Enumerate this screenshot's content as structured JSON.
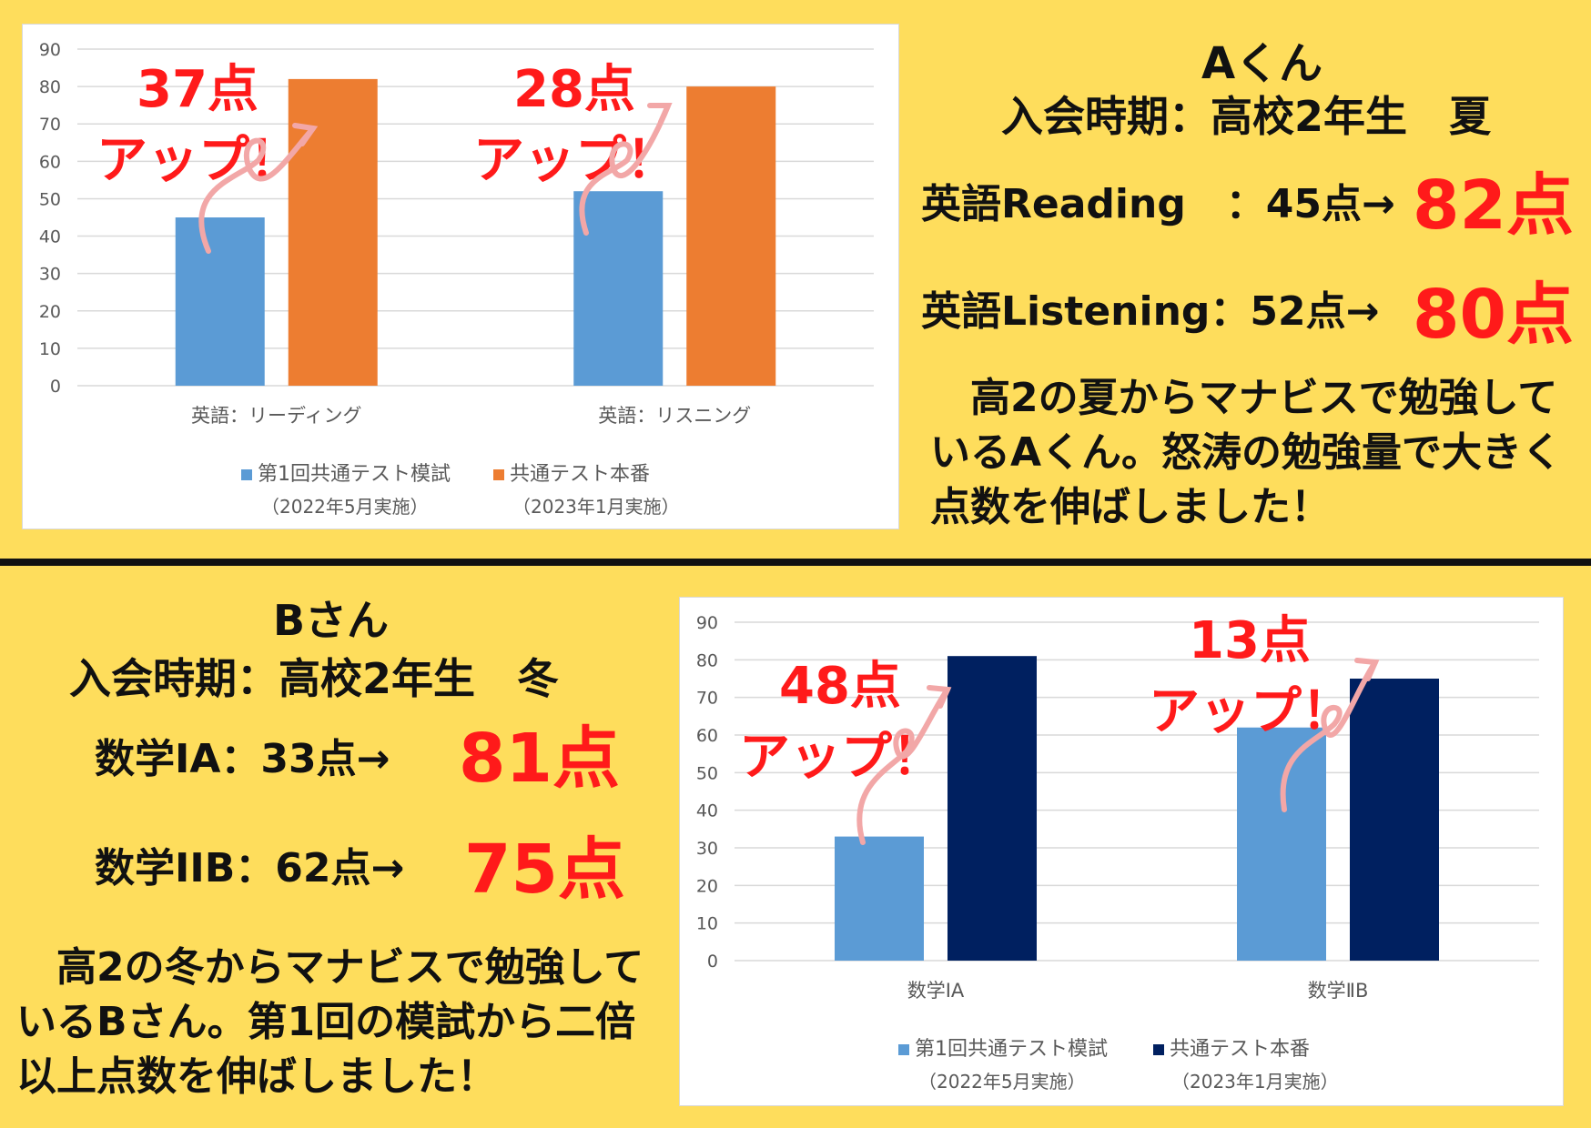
{
  "top": {
    "student": "Aくん",
    "period": "入会時期：高校2年生　夏",
    "score1": {
      "label": "英語Reading　：45点→",
      "result": "82点"
    },
    "score2": {
      "label": "英語Listening：52点→",
      "result": "80点"
    },
    "desc": [
      "　高2の夏からマナビスで勉強して",
      "いるAくん。怒涛の勉強量で大きく",
      "点数を伸ばしました！"
    ]
  },
  "bottom": {
    "student": "Bさん",
    "period": "入会時期：高校2年生　冬",
    "score1": {
      "label": "数学IA：33点→",
      "result": "81点"
    },
    "score2": {
      "label": "数学IIB：62点→",
      "result": "75点"
    },
    "desc": [
      "　高2の冬からマナビスで勉強して",
      "いるBさん。第1回の模試から二倍",
      "以上点数を伸ばしました！"
    ]
  },
  "annotations": {
    "top_left": [
      "37点",
      "アップ！"
    ],
    "top_right": [
      "28点",
      "アップ！"
    ],
    "bottom_left": [
      "48点",
      "アップ！"
    ],
    "bottom_right": [
      "13点",
      "アップ！"
    ]
  },
  "colors": {
    "accent_red": "#ff1a1a",
    "arrow_pink": "#f2a7a7",
    "background": "#fedd5c"
  },
  "chart_data": [
    {
      "type": "bar",
      "categories": [
        "英語：リーディング",
        "英語：リスニング"
      ],
      "series": [
        {
          "name": "第1回共通テスト模試",
          "values": [
            45,
            52
          ],
          "color": "#5b9bd5"
        },
        {
          "name": "共通テスト本番",
          "values": [
            82,
            80
          ],
          "color": "#ed7d31"
        }
      ],
      "legend_sub": [
        "（2022年5月実施）",
        "（2023年1月実施）"
      ],
      "yticks": [
        "0",
        "10",
        "20",
        "30",
        "40",
        "50",
        "60",
        "70",
        "80",
        "90"
      ],
      "ylim": [
        0,
        90
      ],
      "grid": true,
      "legend": "bottom"
    },
    {
      "type": "bar",
      "categories": [
        "数学ⅠA",
        "数学ⅡB"
      ],
      "series": [
        {
          "name": "第1回共通テスト模試",
          "values": [
            33,
            62
          ],
          "color": "#5b9bd5"
        },
        {
          "name": "共通テスト本番",
          "values": [
            81,
            75
          ],
          "color": "#002060"
        }
      ],
      "legend_sub": [
        "（2022年5月実施）",
        "（2023年1月実施）"
      ],
      "yticks": [
        "0",
        "10",
        "20",
        "30",
        "40",
        "50",
        "60",
        "70",
        "80",
        "90"
      ],
      "ylim": [
        0,
        90
      ],
      "grid": true,
      "legend": "bottom"
    }
  ]
}
